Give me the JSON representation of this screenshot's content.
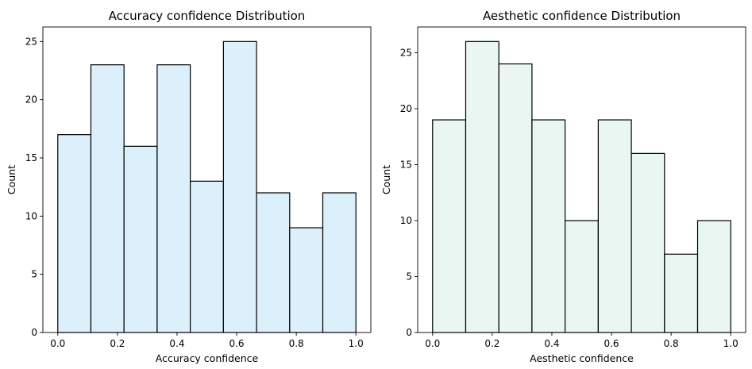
{
  "chart_data": [
    {
      "type": "bar",
      "variant": "histogram",
      "title": "Accuracy confidence Distribution",
      "xlabel": "Accuracy confidence",
      "ylabel": "Count",
      "bin_edges": [
        0.0,
        0.1111,
        0.2222,
        0.3333,
        0.4444,
        0.5556,
        0.6667,
        0.7778,
        0.8889,
        1.0
      ],
      "values": [
        17,
        23,
        16,
        23,
        13,
        25,
        12,
        9,
        12
      ],
      "xlim": [
        -0.05,
        1.05
      ],
      "ylim": [
        0,
        26.25
      ],
      "xticks": [
        0.0,
        0.2,
        0.4,
        0.6,
        0.8,
        1.0
      ],
      "xtick_labels": [
        "0.0",
        "0.2",
        "0.4",
        "0.6",
        "0.8",
        "1.0"
      ],
      "yticks": [
        0,
        5,
        10,
        15,
        20,
        25
      ],
      "ytick_labels": [
        "0",
        "5",
        "10",
        "15",
        "20",
        "25"
      ],
      "bar_color": "#dcf0fb",
      "edge_color": "#000000",
      "grid": false
    },
    {
      "type": "bar",
      "variant": "histogram",
      "title": "Aesthetic confidence Distribution",
      "xlabel": "Aesthetic confidence",
      "ylabel": "Count",
      "bin_edges": [
        0.0,
        0.1111,
        0.2222,
        0.3333,
        0.4444,
        0.5556,
        0.6667,
        0.7778,
        0.8889,
        1.0
      ],
      "values": [
        19,
        26,
        24,
        19,
        10,
        19,
        16,
        7,
        10
      ],
      "xlim": [
        -0.05,
        1.05
      ],
      "ylim": [
        0,
        27.3
      ],
      "xticks": [
        0.0,
        0.2,
        0.4,
        0.6,
        0.8,
        1.0
      ],
      "xtick_labels": [
        "0.0",
        "0.2",
        "0.4",
        "0.6",
        "0.8",
        "1.0"
      ],
      "yticks": [
        0,
        5,
        10,
        15,
        20,
        25
      ],
      "ytick_labels": [
        "0",
        "5",
        "10",
        "15",
        "20",
        "25"
      ],
      "bar_color": "#eaf6f1",
      "edge_color": "#000000",
      "grid": false
    }
  ]
}
